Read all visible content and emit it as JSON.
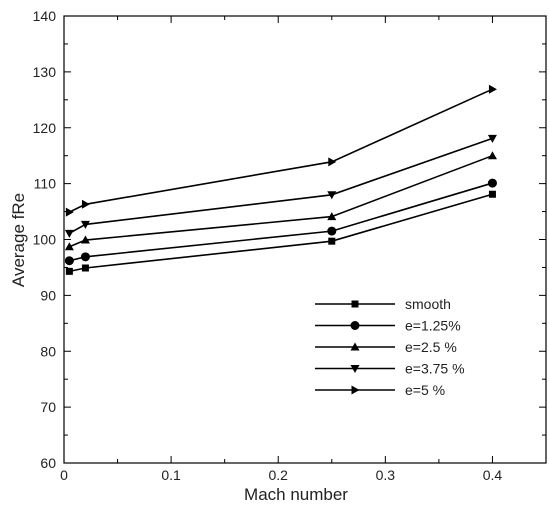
{
  "chart_data": {
    "type": "line",
    "xlabel": "Mach number",
    "ylabel": "Average fRe",
    "xlim": [
      0,
      0.45
    ],
    "ylim": [
      60,
      140
    ],
    "xticks": [
      "0",
      "0.1",
      "0.2",
      "0.3",
      "0.4"
    ],
    "yticks": [
      "60",
      "70",
      "80",
      "90",
      "100",
      "110",
      "120",
      "130",
      "140"
    ],
    "grid": false,
    "legend_position": "lower-right",
    "x": [
      0.005,
      0.02,
      0.25,
      0.4
    ],
    "series": [
      {
        "name": "smooth",
        "marker": "square",
        "values": [
          94.3,
          94.9,
          99.7,
          108.1
        ]
      },
      {
        "name": "e=1.25%",
        "marker": "circle",
        "values": [
          96.2,
          96.9,
          101.5,
          110.1
        ]
      },
      {
        "name": "e=2.5 %",
        "marker": "triangle-up",
        "values": [
          98.7,
          99.9,
          104.1,
          115.0
        ]
      },
      {
        "name": "e=3.75 %",
        "marker": "triangle-down",
        "values": [
          101.1,
          102.7,
          108.0,
          118.1
        ]
      },
      {
        "name": "e=5 %",
        "marker": "triangle-right",
        "values": [
          104.9,
          106.3,
          113.9,
          126.9
        ]
      }
    ]
  }
}
